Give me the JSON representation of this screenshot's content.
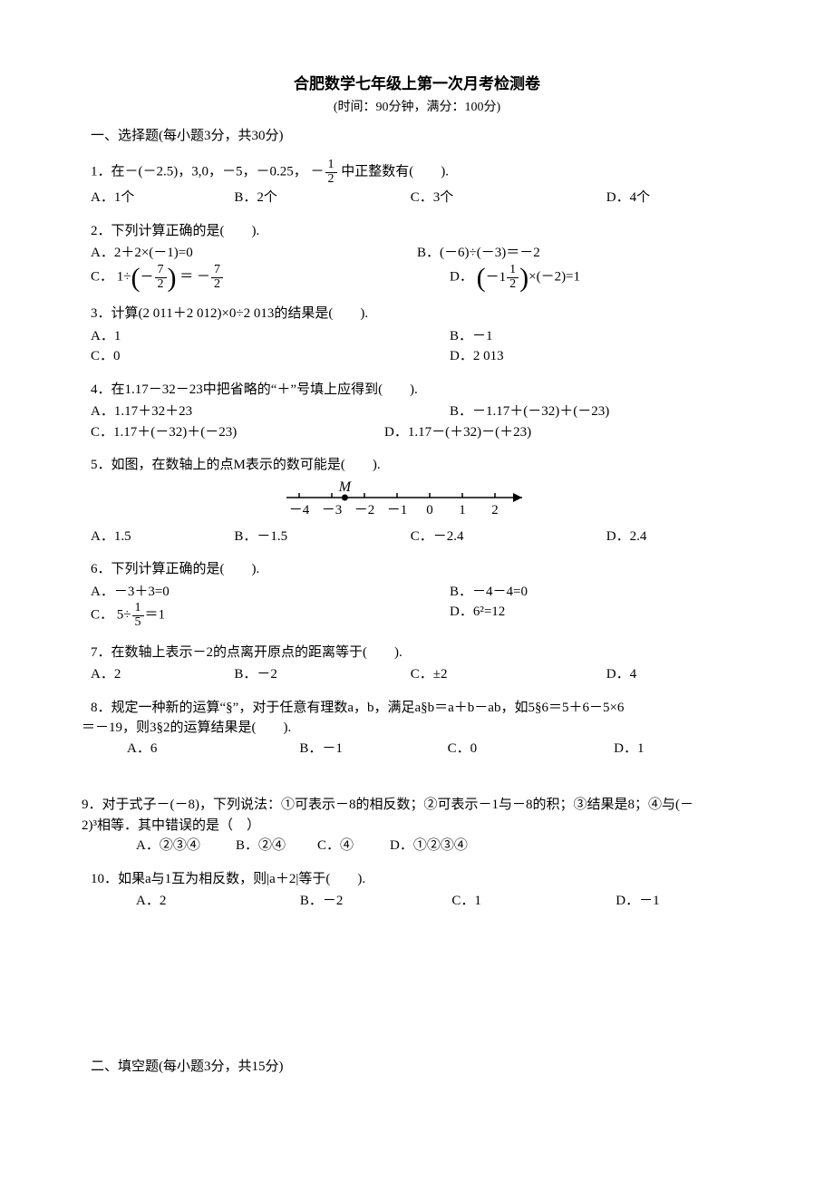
{
  "title": "合肥数学七年级上第一次月考检测卷",
  "subtitle": "(时间：90分钟，满分：100分)",
  "section1_heading": "一、选择题(每小题3分，共30分)",
  "q1": {
    "stem_prefix": "1．在－(－2.5)，3,0，－5，－0.25，",
    "neg": "－",
    "frac_num": "1",
    "frac_den": "2",
    "stem_suffix": "中正整数有(　　).",
    "A": "A．1个",
    "B": "B．2个",
    "C": "C．3个",
    "D": "D．4个"
  },
  "q2": {
    "stem": "2．下列计算正确的是(　　).",
    "A": "A．2＋2×(－1)=0",
    "B": "B．(－6)÷(－3)＝－2",
    "C_prefix": "C．",
    "C_expr_lead": "1÷",
    "C_inner_neg": "－",
    "C_inner_num": "7",
    "C_inner_den": "2",
    "C_eq": "＝",
    "C_rhs_neg": "－",
    "C_rhs_num": "7",
    "C_rhs_den": "2",
    "D_prefix": "D．",
    "D_inner_neg": "－1",
    "D_inner_num": "1",
    "D_inner_den": "2",
    "D_suffix": "×(－2)=1"
  },
  "q3": {
    "stem": "3．计算(2 011＋2 012)×0÷2 013的结果是(　　).",
    "A": "A．1",
    "B": "B．－1",
    "C": "C．0",
    "D": "D．2 013"
  },
  "q4": {
    "stem": "4．在1.17－32－23中把省略的“＋”号填上应得到(　　).",
    "A": "A．1.17＋32＋23",
    "B": "B．－1.17＋(－32)＋(－23)",
    "C": "C．1.17＋(－32)＋(－23)",
    "D": "D．1.17－(＋32)－(＋23)"
  },
  "q5": {
    "stem": "5．如图，在数轴上的点M表示的数可能是(　　).",
    "A": "A．1.5",
    "B": "B．－1.5",
    "C": "C．－2.4",
    "D": "D．2.4",
    "ticks": [
      "－4",
      "－3",
      "－2",
      "－1",
      "0",
      "1",
      "2"
    ],
    "M_label": "M",
    "M_pos_index": 1.4,
    "line_color": "#000000",
    "tick_fontsize": 15
  },
  "q6": {
    "stem": "6．下列计算正确的是(　　).",
    "A": "A．－3＋3=0",
    "B": "B．－4－4=0",
    "C_prefix": "C．",
    "C_lead": "5÷",
    "C_num": "1",
    "C_den": "5",
    "C_suffix": "＝1",
    "D": "D．6²=12"
  },
  "q7": {
    "stem": "7．在数轴上表示－2的点离开原点的距离等于(　　).",
    "A": "A．2",
    "B": "B．－2",
    "C": "C．±2",
    "D": "D．4"
  },
  "q8": {
    "line1": "8．规定一种新的运算“§”，对于任意有理数a，b，满足a§b＝a＋b－ab，如5§6＝5＋6－5×6",
    "line2": "＝－19，则3§2的运算结果是(　　).",
    "A": "A．6",
    "B": "B．－1",
    "C": "C．0",
    "D": "D．1"
  },
  "q9": {
    "line1": "9．对于式子－(－8)，下列说法：①可表示－8的相反数；②可表示－1与－8的积；③结果是8；④与(－",
    "line2": "2)³相等．其中错误的是（　）",
    "A": "A．②③④",
    "B": "B．②④",
    "C": "C．④",
    "D": "D．①②③④"
  },
  "q10": {
    "stem": "10．如果a与1互为相反数，则|a＋2|等于(　　).",
    "A": "A．2",
    "B": "B．－2",
    "C": "C．1",
    "D": "D．－1"
  },
  "section2_heading": "二、填空题(每小题3分，共15分)"
}
